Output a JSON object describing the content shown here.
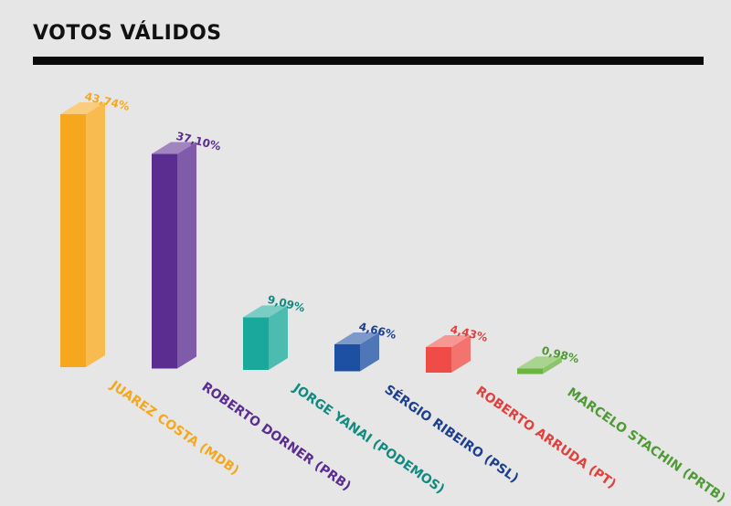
{
  "header": {
    "title": "VOTOS VÁLIDOS"
  },
  "chart_data": {
    "type": "bar",
    "title": "VOTOS VÁLIDOS",
    "categories": [
      "JUAREZ COSTA (MDB)",
      "ROBERTO DORNER (PRB)",
      "JORGE YANAI (PODEMOS)",
      "SÉRGIO RIBEIRO (PSL)",
      "ROBERTO ARRUDA (PT)",
      "MARCELO STACHIN (PRTB)"
    ],
    "values": [
      43.74,
      37.1,
      9.09,
      4.66,
      4.43,
      0.98
    ],
    "value_labels": [
      "43,74%",
      "37,10%",
      "9,09%",
      "4,66%",
      "4,43%",
      "0,98%"
    ],
    "colors": [
      "#f5a81e",
      "#5b2d91",
      "#1aa89a",
      "#1d4fa3",
      "#ef4b47",
      "#6bb43f"
    ],
    "label_colors": [
      "#f5a81e",
      "#5b2d91",
      "#138a80",
      "#1d3f8f",
      "#e2403c",
      "#4f9a35"
    ],
    "xlabel": "",
    "ylabel": "",
    "ylim": [
      0,
      45
    ],
    "grid": false,
    "legend": "none"
  }
}
